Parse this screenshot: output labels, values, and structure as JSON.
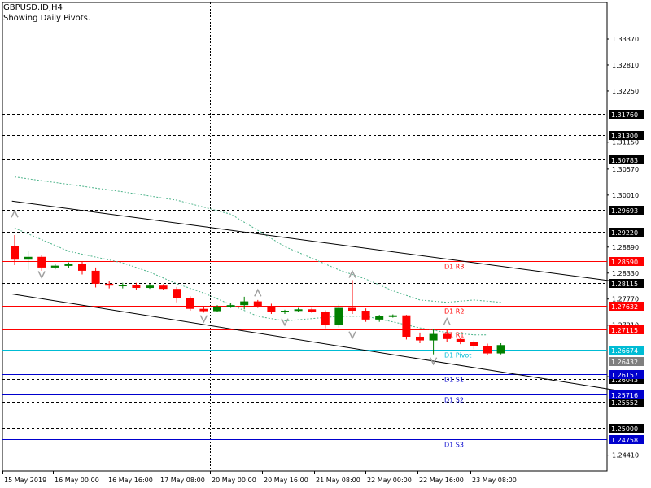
{
  "header": {
    "symbol": "GBPUSD.ID,H4",
    "subtitle": "Showing Daily Pivots."
  },
  "colors": {
    "background": "#ffffff",
    "axis": "#000000",
    "bull": "#008000",
    "bear": "#ff0000",
    "pivot": "#00bcd4",
    "resistance": "#ff0000",
    "support": "#0000cd",
    "envelope": "#4db38a",
    "trendline": "#000000",
    "fractal": "#a0a0a0"
  },
  "chart_data": {
    "type": "candlestick",
    "timeframe": "H4",
    "ylim": [
      1.24,
      1.339
    ],
    "y_ticks": [
      "1.33370",
      "1.32810",
      "1.32250",
      "1.31150",
      "1.30570",
      "1.30010",
      "1.28890",
      "1.28330",
      "1.27770",
      "1.27210",
      "1.26100",
      "1.24410"
    ],
    "x_ticks": [
      "15 May 2019",
      "16 May 00:00",
      "16 May 16:00",
      "17 May 08:00",
      "20 May 00:00",
      "20 May 16:00",
      "21 May 08:00",
      "22 May 00:00",
      "22 May 16:00",
      "23 May 08:00"
    ],
    "grid": false,
    "vertical_marker_at_bar": 21,
    "candles": [
      {
        "o": 1.2892,
        "h": 1.2915,
        "l": 1.285,
        "c": 1.2862
      },
      {
        "o": 1.2862,
        "h": 1.288,
        "l": 1.284,
        "c": 1.2868
      },
      {
        "o": 1.2868,
        "h": 1.2872,
        "l": 1.2838,
        "c": 1.2845
      },
      {
        "o": 1.2845,
        "h": 1.2852,
        "l": 1.2841,
        "c": 1.2849
      },
      {
        "o": 1.2849,
        "h": 1.2856,
        "l": 1.2844,
        "c": 1.2852
      },
      {
        "o": 1.2852,
        "h": 1.2858,
        "l": 1.283,
        "c": 1.2838
      },
      {
        "o": 1.2838,
        "h": 1.2845,
        "l": 1.2802,
        "c": 1.281
      },
      {
        "o": 1.281,
        "h": 1.2815,
        "l": 1.28,
        "c": 1.2806
      },
      {
        "o": 1.2806,
        "h": 1.2812,
        "l": 1.28,
        "c": 1.2808
      },
      {
        "o": 1.2808,
        "h": 1.2812,
        "l": 1.2797,
        "c": 1.2801
      },
      {
        "o": 1.2801,
        "h": 1.281,
        "l": 1.2799,
        "c": 1.2806
      },
      {
        "o": 1.2806,
        "h": 1.2809,
        "l": 1.2797,
        "c": 1.2799
      },
      {
        "o": 1.2799,
        "h": 1.2803,
        "l": 1.277,
        "c": 1.278
      },
      {
        "o": 1.278,
        "h": 1.2783,
        "l": 1.2752,
        "c": 1.2756
      },
      {
        "o": 1.2756,
        "h": 1.2762,
        "l": 1.2748,
        "c": 1.2751
      },
      {
        "o": 1.2751,
        "h": 1.2764,
        "l": 1.2749,
        "c": 1.2761
      },
      {
        "o": 1.2761,
        "h": 1.2768,
        "l": 1.2758,
        "c": 1.2764
      },
      {
        "o": 1.2764,
        "h": 1.2782,
        "l": 1.2755,
        "c": 1.2772
      },
      {
        "o": 1.2772,
        "h": 1.2775,
        "l": 1.2758,
        "c": 1.276
      },
      {
        "o": 1.276,
        "h": 1.2767,
        "l": 1.2745,
        "c": 1.275
      },
      {
        "o": 1.275,
        "h": 1.2754,
        "l": 1.2745,
        "c": 1.2752
      },
      {
        "o": 1.2752,
        "h": 1.2758,
        "l": 1.2749,
        "c": 1.2755
      },
      {
        "o": 1.2755,
        "h": 1.2758,
        "l": 1.2747,
        "c": 1.275
      },
      {
        "o": 1.275,
        "h": 1.2753,
        "l": 1.2714,
        "c": 1.2722
      },
      {
        "o": 1.2722,
        "h": 1.2765,
        "l": 1.2716,
        "c": 1.2758
      },
      {
        "o": 1.2758,
        "h": 1.2818,
        "l": 1.2745,
        "c": 1.2752
      },
      {
        "o": 1.2752,
        "h": 1.2757,
        "l": 1.2728,
        "c": 1.2733
      },
      {
        "o": 1.2733,
        "h": 1.2743,
        "l": 1.2728,
        "c": 1.274
      },
      {
        "o": 1.274,
        "h": 1.2744,
        "l": 1.2737,
        "c": 1.2742
      },
      {
        "o": 1.2742,
        "h": 1.2743,
        "l": 1.269,
        "c": 1.2696
      },
      {
        "o": 1.2696,
        "h": 1.2705,
        "l": 1.2682,
        "c": 1.2688
      },
      {
        "o": 1.2688,
        "h": 1.2712,
        "l": 1.2658,
        "c": 1.2702
      },
      {
        "o": 1.2702,
        "h": 1.2711,
        "l": 1.2685,
        "c": 1.2691
      },
      {
        "o": 1.2691,
        "h": 1.2694,
        "l": 1.268,
        "c": 1.2685
      },
      {
        "o": 1.2685,
        "h": 1.2688,
        "l": 1.2669,
        "c": 1.2675
      },
      {
        "o": 1.2675,
        "h": 1.2681,
        "l": 1.2657,
        "c": 1.266
      },
      {
        "o": 1.266,
        "h": 1.2682,
        "l": 1.2658,
        "c": 1.2678
      }
    ],
    "pivot_levels": [
      {
        "label": "D1 R3",
        "value": 1.2859,
        "tag": "1.28590",
        "kind": "resistance"
      },
      {
        "label": "D1 R2",
        "value": 1.27632,
        "tag": "1.27632",
        "kind": "resistance"
      },
      {
        "label": "D1 R1",
        "value": 1.27115,
        "tag": "1.27115",
        "kind": "resistance"
      },
      {
        "label": "D1 Pivot",
        "value": 1.26674,
        "tag": "1.26674",
        "kind": "pivot"
      },
      {
        "label": "D1 S1",
        "value": 1.26157,
        "tag": "1.26157",
        "kind": "support"
      },
      {
        "label": "D1 S2",
        "value": 1.25716,
        "tag": "1.25716",
        "kind": "support"
      },
      {
        "label": "D1 S3",
        "value": 1.24758,
        "tag": "1.24758",
        "kind": "support"
      }
    ],
    "dashed_levels": [
      {
        "value": 1.3176,
        "tag": "1.31760"
      },
      {
        "value": 1.313,
        "tag": "1.31300"
      },
      {
        "value": 1.30783,
        "tag": "1.30783"
      },
      {
        "value": 1.29693,
        "tag": "1.29693"
      },
      {
        "value": 1.2922,
        "tag": "1.29220"
      },
      {
        "value": 1.28115,
        "tag": "1.28115"
      },
      {
        "value": 1.26043,
        "tag": "1.26043"
      },
      {
        "value": 1.25552,
        "tag": "1.25552"
      },
      {
        "value": 1.25,
        "tag": "1.25000"
      }
    ],
    "price_tag": {
      "value": 1.26432,
      "tag": "1.26432"
    },
    "trendlines": [
      {
        "from": {
          "bar": -0.2,
          "price": 1.2988
        },
        "to": {
          "bar": 44.7,
          "price": 1.2814
        }
      },
      {
        "from": {
          "bar": -0.2,
          "price": 1.2788
        },
        "to": {
          "bar": 44.7,
          "price": 1.258
        }
      }
    ],
    "envelopes": [
      {
        "points": [
          [
            0,
            1.304
          ],
          [
            4,
            1.3024
          ],
          [
            8,
            1.3008
          ],
          [
            12,
            1.299
          ],
          [
            16,
            1.296
          ],
          [
            18,
            1.2925
          ],
          [
            20,
            1.289
          ],
          [
            22,
            1.2865
          ],
          [
            24,
            1.284
          ],
          [
            26,
            1.282
          ],
          [
            28,
            1.2795
          ],
          [
            30,
            1.2775
          ],
          [
            32,
            1.277
          ],
          [
            34,
            1.2775
          ],
          [
            36,
            1.277
          ]
        ]
      },
      {
        "points": [
          [
            0,
            1.293
          ],
          [
            4,
            1.288
          ],
          [
            8,
            1.2855
          ],
          [
            10,
            1.2835
          ],
          [
            12,
            1.281
          ],
          [
            14,
            1.279
          ],
          [
            16,
            1.2765
          ],
          [
            18,
            1.274
          ],
          [
            20,
            1.273
          ],
          [
            22,
            1.2735
          ],
          [
            24,
            1.274
          ],
          [
            26,
            1.274
          ],
          [
            28,
            1.2728
          ],
          [
            30,
            1.2715
          ],
          [
            32,
            1.2705
          ],
          [
            34,
            1.27
          ],
          [
            35,
            1.27
          ]
        ]
      }
    ],
    "fractals": [
      {
        "bar": 0,
        "price": 1.296,
        "dir": "up"
      },
      {
        "bar": 2,
        "price": 1.283,
        "dir": "down"
      },
      {
        "bar": 14,
        "price": 1.2735,
        "dir": "down"
      },
      {
        "bar": 18,
        "price": 1.279,
        "dir": "up"
      },
      {
        "bar": 20,
        "price": 1.2728,
        "dir": "down"
      },
      {
        "bar": 25,
        "price": 1.283,
        "dir": "up"
      },
      {
        "bar": 25,
        "price": 1.27,
        "dir": "down"
      },
      {
        "bar": 32,
        "price": 1.2728,
        "dir": "up"
      },
      {
        "bar": 31,
        "price": 1.2644,
        "dir": "down"
      }
    ]
  }
}
